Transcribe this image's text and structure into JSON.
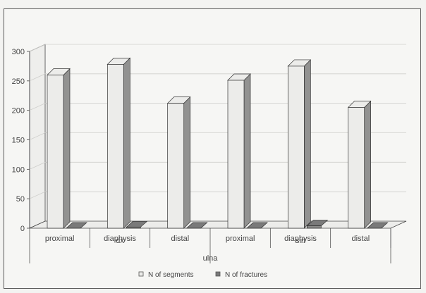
{
  "chart_data": {
    "type": "bar",
    "title": "",
    "xlabel": "",
    "ylabel": "",
    "ylim": [
      0,
      300
    ],
    "yticks": [
      0,
      50,
      100,
      150,
      200,
      250,
      300
    ],
    "grid": true,
    "legend_position": "bottom",
    "categories": [
      "proximal",
      "diaphysis",
      "distal",
      "proximal",
      "diaphysis",
      "distal"
    ],
    "groups_level2": [
      {
        "label": "dx",
        "span": [
          0,
          2
        ]
      },
      {
        "label": "sin",
        "span": [
          3,
          5
        ]
      }
    ],
    "group_level3": "ulna",
    "series": [
      {
        "name": "N of segments",
        "values": [
          260,
          278,
          212,
          251,
          275,
          205
        ],
        "color": "#ececea"
      },
      {
        "name": "N of fractures",
        "values": [
          0,
          2,
          0,
          0,
          4,
          0
        ],
        "color": "#7a7a7a"
      }
    ]
  }
}
